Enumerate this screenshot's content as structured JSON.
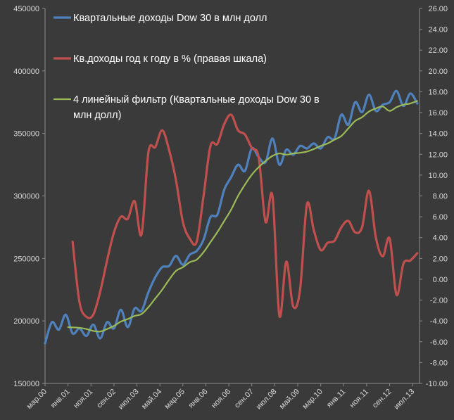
{
  "chart_data": {
    "type": "line",
    "title": "",
    "xlabel": "",
    "ylabel": "",
    "y_left": {
      "lim": [
        150000,
        450000
      ],
      "ticks": [
        "150000",
        "200000",
        "250000",
        "300000",
        "350000",
        "400000",
        "450000"
      ]
    },
    "y_right": {
      "lim": [
        -10,
        26
      ],
      "ticks": [
        "-10.00",
        "-8.00",
        "-6.00",
        "-4.00",
        "-2.00",
        "0.00",
        "2.00",
        "4.00",
        "6.00",
        "8.00",
        "10.00",
        "12.00",
        "14.00",
        "16.00",
        "18.00",
        "20.00",
        "22.00",
        "24.00",
        "26.00"
      ]
    },
    "x_start": 2000.167,
    "x_end": 2013.75,
    "x_ticks": [
      {
        "label": "мар.00",
        "x": 2000.167
      },
      {
        "label": "янв.01",
        "x": 2001.0
      },
      {
        "label": "ноя.01",
        "x": 2001.833
      },
      {
        "label": "сен.02",
        "x": 2002.667
      },
      {
        "label": "июл.03",
        "x": 2003.5
      },
      {
        "label": "май.04",
        "x": 2004.333
      },
      {
        "label": "мар.05",
        "x": 2005.167
      },
      {
        "label": "янв.06",
        "x": 2006.0
      },
      {
        "label": "ноя.06",
        "x": 2006.833
      },
      {
        "label": "сен.07",
        "x": 2007.667
      },
      {
        "label": "июл.08",
        "x": 2008.5
      },
      {
        "label": "май.09",
        "x": 2009.333
      },
      {
        "label": "мар.10",
        "x": 2010.167
      },
      {
        "label": "янв.11",
        "x": 2011.0
      },
      {
        "label": "ноя.11",
        "x": 2011.833
      },
      {
        "label": "сен.12",
        "x": 2012.667
      },
      {
        "label": "июл.13",
        "x": 2013.5
      }
    ],
    "grid": false,
    "legend_position": "top-left",
    "series": [
      {
        "name": "Квартальные  доходы  Dow 30 в млн долл",
        "axis": "left",
        "color": "#4f81bd",
        "x": [
          2000.167,
          2000.417,
          2000.667,
          2000.917,
          2001.167,
          2001.417,
          2001.667,
          2001.917,
          2002.167,
          2002.417,
          2002.667,
          2002.917,
          2003.167,
          2003.417,
          2003.667,
          2003.917,
          2004.167,
          2004.417,
          2004.667,
          2004.917,
          2005.167,
          2005.417,
          2005.667,
          2005.917,
          2006.167,
          2006.417,
          2006.667,
          2006.917,
          2007.167,
          2007.417,
          2007.667,
          2007.917,
          2008.167,
          2008.417,
          2008.667,
          2008.917,
          2009.167,
          2009.417,
          2009.667,
          2009.917,
          2010.167,
          2010.417,
          2010.667,
          2010.917,
          2011.167,
          2011.417,
          2011.667,
          2011.917,
          2012.167,
          2012.417,
          2012.667,
          2012.917,
          2013.167,
          2013.417,
          2013.667
        ],
        "values": [
          182000,
          199000,
          193000,
          205000,
          190000,
          194000,
          188000,
          197000,
          186000,
          199000,
          194000,
          209000,
          195000,
          210000,
          208000,
          223000,
          235000,
          243000,
          244000,
          252000,
          245000,
          253000,
          256000,
          265000,
          283000,
          285000,
          305000,
          315000,
          325000,
          320000,
          338000,
          331000,
          327000,
          346000,
          325000,
          337000,
          333000,
          340000,
          338000,
          342000,
          338000,
          347000,
          346000,
          365000,
          357000,
          375000,
          367000,
          381000,
          368000,
          373000,
          375000,
          384000,
          372000,
          382000,
          374000
        ]
      },
      {
        "name": "Кв.доходы  год к году в % (правая шкала)",
        "axis": "right",
        "color": "#c0504d",
        "x": [
          2001.167,
          2001.417,
          2001.667,
          2001.917,
          2002.167,
          2002.417,
          2002.667,
          2002.917,
          2003.167,
          2003.417,
          2003.667,
          2003.917,
          2004.167,
          2004.417,
          2004.667,
          2004.917,
          2005.167,
          2005.417,
          2005.667,
          2005.917,
          2006.167,
          2006.417,
          2006.667,
          2006.917,
          2007.167,
          2007.417,
          2007.667,
          2007.917,
          2008.167,
          2008.417,
          2008.667,
          2008.917,
          2009.167,
          2009.417,
          2009.667,
          2009.917,
          2010.167,
          2010.417,
          2010.667,
          2010.917,
          2011.167,
          2011.417,
          2011.667,
          2011.917,
          2012.167,
          2012.417,
          2012.667,
          2012.917,
          2013.167,
          2013.417,
          2013.667
        ],
        "values": [
          3.6,
          -2.2,
          -3.6,
          -3.4,
          -1.2,
          1.8,
          4.5,
          6.0,
          5.8,
          7.5,
          4.3,
          12.2,
          12.7,
          14.3,
          12.4,
          9.5,
          5.5,
          3.9,
          3.6,
          8.0,
          12.8,
          13.0,
          14.9,
          15.8,
          14.3,
          13.9,
          12.6,
          11.7,
          5.5,
          8.0,
          -3.5,
          1.7,
          -2.6,
          -1.0,
          7.2,
          4.7,
          2.8,
          3.5,
          3.7,
          5.0,
          5.6,
          4.5,
          5.0,
          8.5,
          4.0,
          2.2,
          3.9,
          -1.5,
          1.5,
          1.8,
          2.5
        ]
      },
      {
        "name": "4 линейный  фильтр (Квартальные  доходы  Dow 30 в млн долл)",
        "axis": "left",
        "color": "#9bbb59",
        "x": [
          2001.0,
          2001.417,
          2001.667,
          2001.917,
          2002.167,
          2002.417,
          2002.667,
          2002.917,
          2003.167,
          2003.417,
          2003.667,
          2003.917,
          2004.167,
          2004.417,
          2004.667,
          2004.917,
          2005.167,
          2005.417,
          2005.667,
          2005.917,
          2006.167,
          2006.417,
          2006.667,
          2006.917,
          2007.167,
          2007.417,
          2007.667,
          2007.917,
          2008.167,
          2008.417,
          2008.667,
          2008.917,
          2009.167,
          2009.417,
          2009.667,
          2009.917,
          2010.167,
          2010.417,
          2010.667,
          2010.917,
          2011.167,
          2011.417,
          2011.667,
          2011.917,
          2012.167,
          2012.417,
          2012.667,
          2012.917,
          2013.167,
          2013.417,
          2013.667
        ],
        "values": [
          195000,
          194500,
          193500,
          192000,
          191500,
          193500,
          196000,
          199500,
          201500,
          204000,
          205500,
          211000,
          218000,
          225000,
          233000,
          240000,
          243000,
          247000,
          249000,
          255000,
          263000,
          271000,
          280000,
          289000,
          300000,
          309000,
          317000,
          323000,
          328000,
          332000,
          334000,
          333000,
          334000,
          334500,
          335500,
          337500,
          340000,
          342000,
          345000,
          348000,
          354000,
          360000,
          363000,
          367500,
          370000,
          371500,
          368000,
          371000,
          373000,
          374000,
          376000
        ]
      }
    ]
  },
  "legend": [
    {
      "line1": "Квартальные  доходы  Dow 30 в млн долл",
      "line2": ""
    },
    {
      "line1": "Кв.доходы  год к году в % (правая шкала)",
      "line2": ""
    },
    {
      "line1": "4 линейный  фильтр (Квартальные  доходы  Dow 30 в",
      "line2": "млн долл)"
    }
  ],
  "colors": {
    "background": "#3a3a3a",
    "axis": "#8c8c8c",
    "text": "#d8d8d8"
  }
}
